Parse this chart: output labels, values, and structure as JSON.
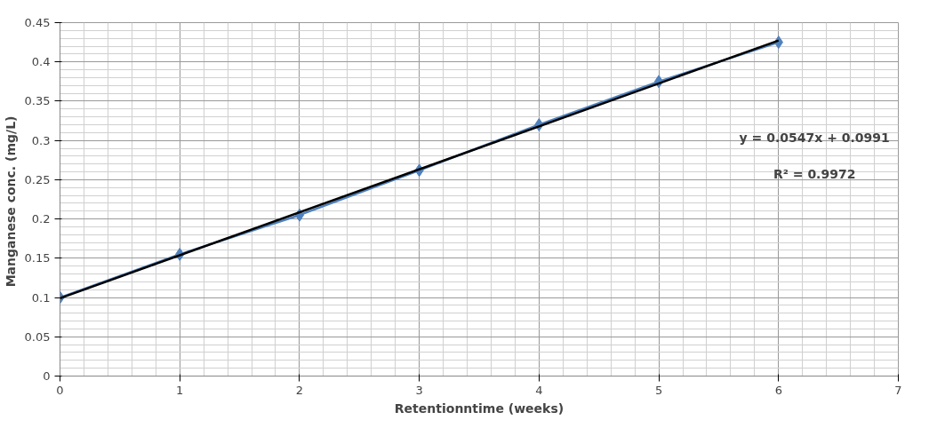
{
  "chart_data": {
    "type": "line",
    "xlabel": "Retentionntime (weeks)",
    "ylabel": "Manganese  conc. (mg/L)",
    "x": [
      0,
      1,
      2,
      3,
      4,
      5,
      6
    ],
    "series": [
      {
        "color": "#4f81bd",
        "values": [
          0.1,
          0.155,
          0.205,
          0.262,
          0.32,
          0.375,
          0.425
        ],
        "marker": "diamond"
      },
      {
        "type": "line",
        "color": "#000000",
        "x": [
          0,
          6
        ],
        "values": [
          0.0991,
          0.4273
        ],
        "marker": "none"
      }
    ],
    "xlim": [
      0,
      7
    ],
    "xticks": [
      0,
      1,
      2,
      3,
      4,
      5,
      6,
      7
    ],
    "ylim": [
      0,
      0.45
    ],
    "yticks": [
      0,
      0.05,
      0.1,
      0.15,
      0.2,
      0.25,
      0.3,
      0.35,
      0.4,
      0.45
    ],
    "grid": true,
    "line_style": "solid",
    "annotations": [
      "y = 0.0547x + 0.0991",
      "R² = 0.9972"
    ]
  }
}
